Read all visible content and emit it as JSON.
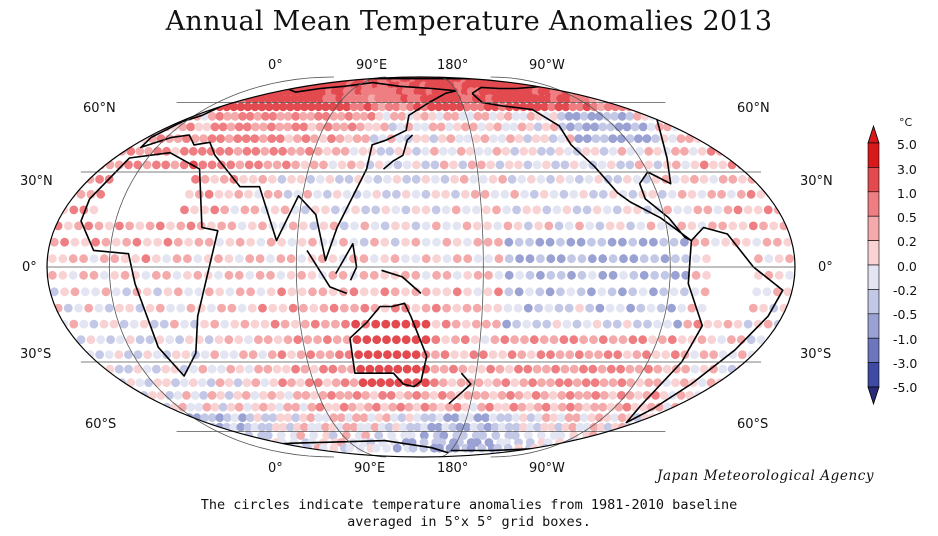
{
  "title": "Annual Mean Temperature Anomalies 2013",
  "credit": "Japan Meteorological Agency",
  "caption": {
    "line1": "The circles indicate temperature anomalies from 1981-2010 baseline",
    "line2": "averaged in 5°x 5° grid boxes."
  },
  "map_labels": {
    "top": [
      "0°",
      "90°E",
      "180°",
      "90°W"
    ],
    "bottom": [
      "0°",
      "90°E",
      "180°",
      "90°W"
    ],
    "left": [
      "60°N",
      "30°N",
      "0°",
      "30°S",
      "60°S"
    ],
    "right": [
      "60°N",
      "30°N",
      "0°",
      "30°S",
      "60°S"
    ]
  },
  "colorbar": {
    "unit": "°C",
    "ticks": [
      "5.0",
      "3.0",
      "1.0",
      "0.5",
      "0.2",
      "0.0",
      "-0.2",
      "-0.5",
      "-1.0",
      "-3.0",
      "-5.0"
    ],
    "colors": [
      "#d7191c",
      "#e34a4f",
      "#ee7e82",
      "#f4a9ab",
      "#f9d3d4",
      "#e3e5f3",
      "#c3c8e7",
      "#9aa1d3",
      "#6c76bc",
      "#3f4ba3"
    ]
  },
  "map": {
    "projection": "equal-earth",
    "grid": "30° latitude, 90° longitude",
    "cell_size": "5° x 5°"
  }
}
